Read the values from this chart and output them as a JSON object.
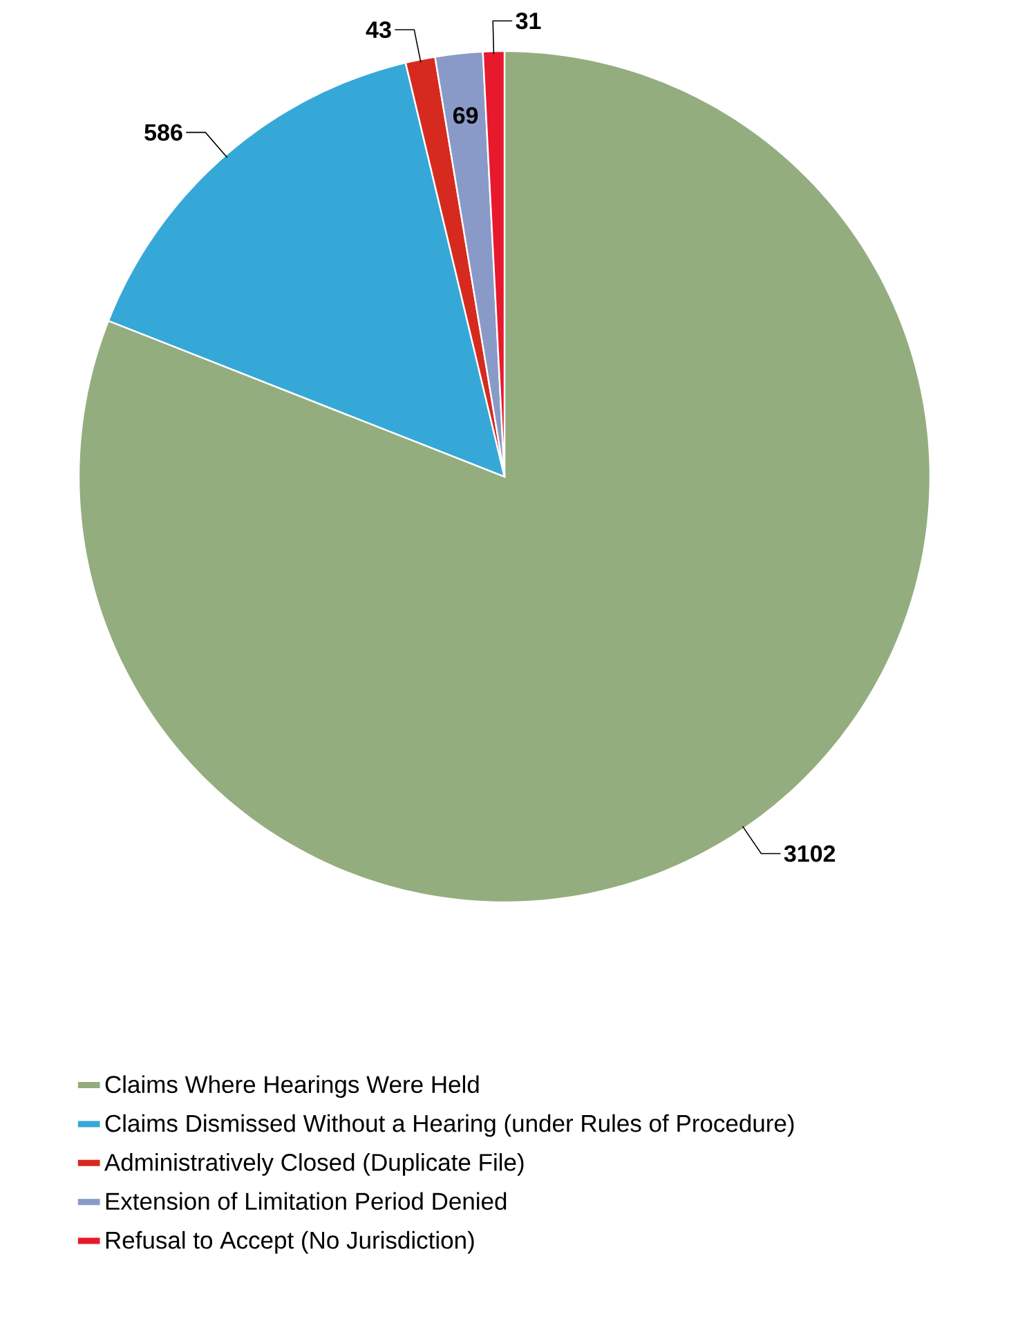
{
  "chart_data": {
    "type": "pie",
    "categories": [
      "Claims Where Hearings Were Held",
      "Claims Dismissed Without a Hearing (under Rules of Procedure)",
      "Administratively Closed (Duplicate File)",
      "Extension of Limitation Period Denied",
      "Refusal to Accept (No Jurisdiction)"
    ],
    "values": [
      3102,
      586,
      43,
      69,
      31
    ],
    "colors": [
      "#93ad7f",
      "#36a8d8",
      "#d62a1e",
      "#8a9ac8",
      "#e8192c"
    ],
    "data_labels": true,
    "legend": "bottom"
  }
}
